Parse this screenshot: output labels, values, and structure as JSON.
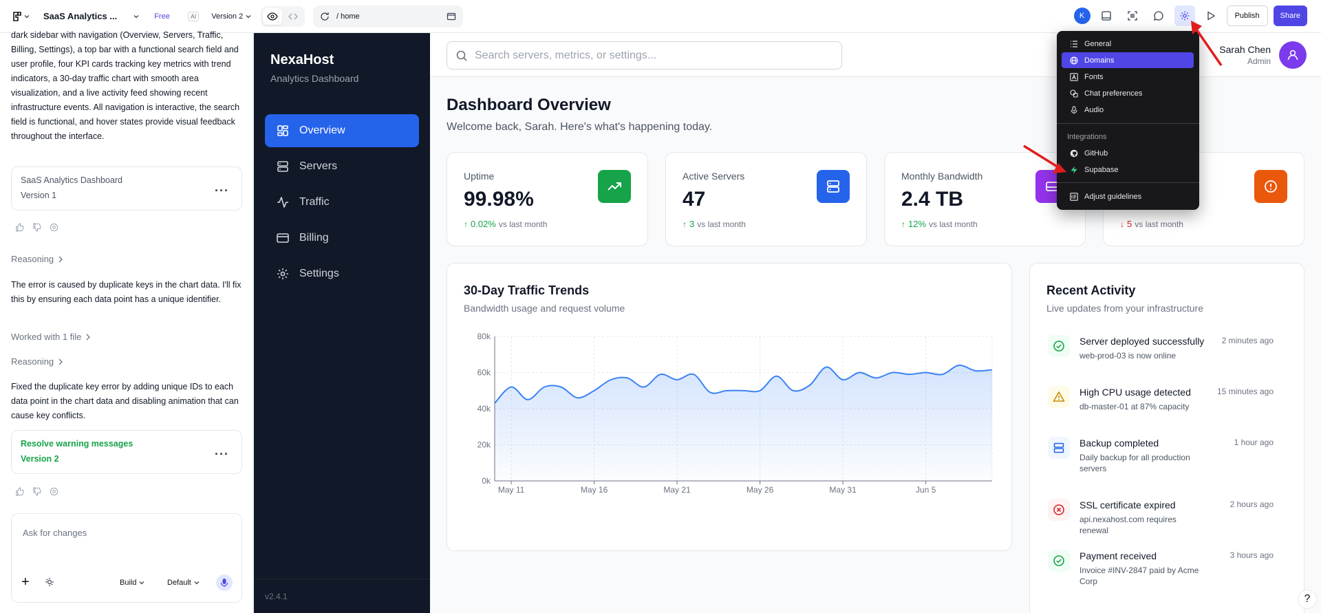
{
  "topbar": {
    "project_title": "SaaS Analytics ...",
    "plan": "Free",
    "ai_badge": "AI",
    "version": "Version 2",
    "url_path": "/  home",
    "account_initial": "K",
    "publish": "Publish",
    "share": "Share"
  },
  "chat": {
    "intro": "dark sidebar with navigation (Overview, Servers, Traffic, Billing, Settings), a top bar with a functional search field and user profile, four KPI cards tracking key metrics with trend indicators, a 30-day traffic chart with smooth area visualization, and a live activity feed showing recent infrastructure events. All navigation is interactive, the search field is functional, and hover states provide visual feedback throughout the interface.",
    "version1_title": "SaaS Analytics Dashboard",
    "version1_label": "Version 1",
    "reasoning_label": "Reasoning",
    "message1": "The error is caused by duplicate keys in the chart data. I'll fix this by ensuring each data point has a unique identifier.",
    "worked_with": "Worked with 1 file",
    "reasoning_label_2": "Reasoning",
    "message2": "Fixed the duplicate key error by adding unique IDs to each data point in the chart data and disabling animation that can cause key conflicts.",
    "version2_title": "Resolve warning messages",
    "version2_label": "Version 2",
    "composer_placeholder": "Ask for changes",
    "build": "Build",
    "mode": "Default"
  },
  "sidebar": {
    "brand": "NexaHost",
    "subtitle": "Analytics Dashboard",
    "items": [
      {
        "label": "Overview",
        "icon": "grid-icon"
      },
      {
        "label": "Servers",
        "icon": "server-icon"
      },
      {
        "label": "Traffic",
        "icon": "activity-icon"
      },
      {
        "label": "Billing",
        "icon": "credit-card-icon"
      },
      {
        "label": "Settings",
        "icon": "gear-icon"
      }
    ],
    "version": "v2.4.1"
  },
  "header": {
    "search_placeholder": "Search servers, metrics, or settings...",
    "user_name": "Sarah Chen",
    "user_role": "Admin"
  },
  "page": {
    "title": "Dashboard Overview",
    "subtitle": "Welcome back, Sarah. Here's what's happening today."
  },
  "kpis": [
    {
      "label": "Uptime",
      "value": "99.98%",
      "arrow": "↑",
      "change": "0.02%",
      "suffix": "vs last month",
      "color": "#16a34a"
    },
    {
      "label": "Active Servers",
      "value": "47",
      "arrow": "↑",
      "change": "3",
      "suffix": "vs last month",
      "color": "#2563eb"
    },
    {
      "label": "Monthly Bandwidth",
      "value": "2.4 TB",
      "arrow": "↑",
      "change": "12%",
      "suffix": "vs last month",
      "color": "#9333ea"
    },
    {
      "label": "",
      "value": "",
      "arrow": "↓",
      "change": "5",
      "suffix": "vs last month",
      "color": "#ea580c"
    }
  ],
  "traffic": {
    "title": "30-Day Traffic Trends",
    "subtitle": "Bandwidth usage and request volume"
  },
  "chart_data": {
    "type": "area",
    "title": "30-Day Traffic Trends",
    "x": [
      "May 10",
      "May 11",
      "May 12",
      "May 13",
      "May 14",
      "May 15",
      "May 16",
      "May 17",
      "May 18",
      "May 19",
      "May 20",
      "May 21",
      "May 22",
      "May 23",
      "May 24",
      "May 25",
      "May 26",
      "May 27",
      "May 28",
      "May 29",
      "May 30",
      "May 31",
      "Jun 1",
      "Jun 2",
      "Jun 3",
      "Jun 4",
      "Jun 5",
      "Jun 6",
      "Jun 7",
      "Jun 8",
      "Jun 9"
    ],
    "x_ticks": [
      "May 11",
      "May 16",
      "May 21",
      "May 26",
      "May 31",
      "Jun 5"
    ],
    "series": [
      {
        "values": [
          43000,
          52000,
          45000,
          52000,
          52000,
          46000,
          50000,
          56000,
          57000,
          52000,
          59000,
          56000,
          59000,
          49000,
          50000,
          50000,
          50000,
          58000,
          50000,
          53000,
          63000,
          56000,
          60000,
          57000,
          60000,
          59000,
          60000,
          59000,
          64000,
          61000,
          61500
        ],
        "color": "#3b82f6"
      }
    ],
    "y_ticks": [
      "0k",
      "20k",
      "40k",
      "60k",
      "80k"
    ],
    "ylim": [
      0,
      80000
    ],
    "grid": true
  },
  "activity": {
    "title": "Recent Activity",
    "subtitle": "Live updates from your infrastructure",
    "items": [
      {
        "title": "Server deployed successfully",
        "desc": "web-prod-03 is now online",
        "time": "2 minutes ago",
        "icon": "check-circle-icon",
        "color": "#16a34a",
        "bg": "#f0fdf4"
      },
      {
        "title": "High CPU usage detected",
        "desc": "db-master-01 at 87% capacity",
        "time": "15 minutes ago",
        "icon": "warning-icon",
        "color": "#ca8a04",
        "bg": "#fefce8"
      },
      {
        "title": "Backup completed",
        "desc": "Daily backup for all production servers",
        "time": "1 hour ago",
        "icon": "server-icon",
        "color": "#2563eb",
        "bg": "#eff6ff"
      },
      {
        "title": "SSL certificate expired",
        "desc": "api.nexahost.com requires renewal",
        "time": "2 hours ago",
        "icon": "x-circle-icon",
        "color": "#dc2626",
        "bg": "#fef2f2"
      },
      {
        "title": "Payment received",
        "desc": "Invoice #INV-2847 paid by Acme Corp",
        "time": "3 hours ago",
        "icon": "check-circle-icon",
        "color": "#16a34a",
        "bg": "#f0fdf4"
      }
    ]
  },
  "menu": {
    "items": [
      "General",
      "Domains",
      "Fonts",
      "Chat preferences",
      "Audio"
    ],
    "integrations_heading": "Integrations",
    "integrations": [
      "GitHub",
      "Supabase"
    ],
    "footer": "Adjust guidelines"
  },
  "help": "?"
}
